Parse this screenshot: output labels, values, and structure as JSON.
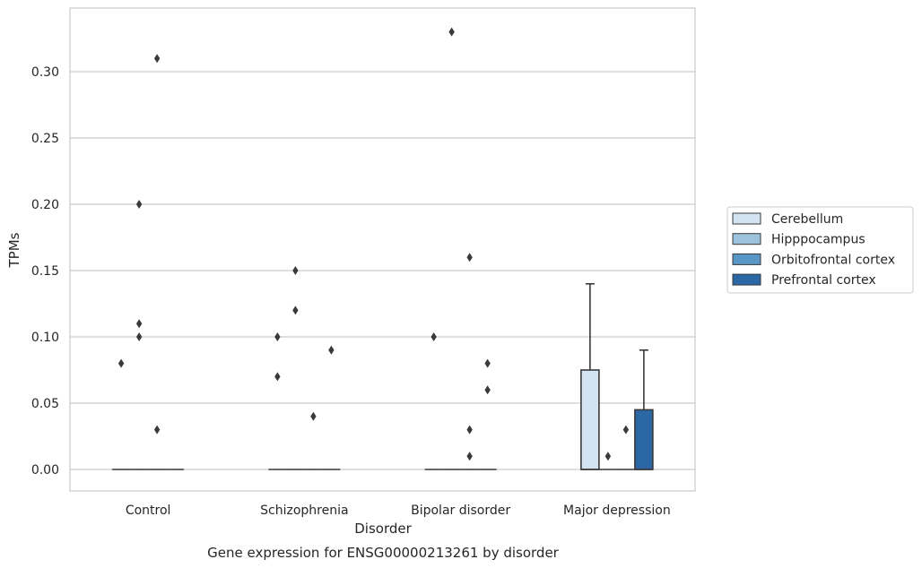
{
  "chart_data": {
    "type": "box",
    "title": "",
    "caption": "Gene expression for ENSG00000213261 by disorder",
    "xlabel": "Disorder",
    "ylabel": "TPMs",
    "ylim": [
      -0.016,
      0.346
    ],
    "yticks": [
      0.0,
      0.05,
      0.1,
      0.15,
      0.2,
      0.25,
      0.3
    ],
    "ytick_labels": [
      "0.00",
      "0.05",
      "0.10",
      "0.15",
      "0.20",
      "0.25",
      "0.30"
    ],
    "grid": "horizontal",
    "legend_position": "right",
    "categories": [
      "Control",
      "Schizophrenia",
      "Bipolar disorder",
      "Major depression"
    ],
    "series": [
      {
        "name": "Cerebellum",
        "color": "#d3e3f2",
        "boxes": [
          {
            "q1": 0,
            "median": 0,
            "q3": 0,
            "whisker_low": 0,
            "whisker_high": 0,
            "outliers": [
              0.08
            ]
          },
          {
            "q1": 0,
            "median": 0,
            "q3": 0,
            "whisker_low": 0,
            "whisker_high": 0,
            "outliers": [
              0.07,
              0.1
            ]
          },
          {
            "q1": 0,
            "median": 0,
            "q3": 0,
            "whisker_low": 0,
            "whisker_high": 0,
            "outliers": [
              0.1
            ]
          },
          {
            "q1": 0,
            "median": 0,
            "q3": 0.075,
            "whisker_low": 0,
            "whisker_high": 0.14,
            "outliers": []
          }
        ]
      },
      {
        "name": "Hipppocampus",
        "color": "#9cc2dc",
        "boxes": [
          {
            "q1": 0,
            "median": 0,
            "q3": 0,
            "whisker_low": 0,
            "whisker_high": 0,
            "outliers": [
              0.1,
              0.11,
              0.2
            ]
          },
          {
            "q1": 0,
            "median": 0,
            "q3": 0,
            "whisker_low": 0,
            "whisker_high": 0,
            "outliers": [
              0.12,
              0.15
            ]
          },
          {
            "q1": 0,
            "median": 0,
            "q3": 0,
            "whisker_low": 0,
            "whisker_high": 0,
            "outliers": [
              0.33
            ]
          },
          {
            "q1": 0,
            "median": 0,
            "q3": 0,
            "whisker_low": 0,
            "whisker_high": 0,
            "outliers": [
              0.01
            ]
          }
        ]
      },
      {
        "name": "Orbitofrontal cortex",
        "color": "#5897c6",
        "boxes": [
          {
            "q1": 0,
            "median": 0,
            "q3": 0,
            "whisker_low": 0,
            "whisker_high": 0,
            "outliers": [
              0.03,
              0.31
            ]
          },
          {
            "q1": 0,
            "median": 0,
            "q3": 0,
            "whisker_low": 0,
            "whisker_high": 0,
            "outliers": [
              0.04
            ]
          },
          {
            "q1": 0,
            "median": 0,
            "q3": 0,
            "whisker_low": 0,
            "whisker_high": 0,
            "outliers": [
              0.01,
              0.03,
              0.16
            ]
          },
          {
            "q1": 0,
            "median": 0,
            "q3": 0,
            "whisker_low": 0,
            "whisker_high": 0,
            "outliers": [
              0.03
            ]
          }
        ]
      },
      {
        "name": "Prefrontal cortex",
        "color": "#2b66a5",
        "boxes": [
          {
            "q1": 0,
            "median": 0,
            "q3": 0,
            "whisker_low": 0,
            "whisker_high": 0,
            "outliers": []
          },
          {
            "q1": 0,
            "median": 0,
            "q3": 0,
            "whisker_low": 0,
            "whisker_high": 0,
            "outliers": [
              0.09
            ]
          },
          {
            "q1": 0,
            "median": 0,
            "q3": 0,
            "whisker_low": 0,
            "whisker_high": 0,
            "outliers": [
              0.06,
              0.08
            ]
          },
          {
            "q1": 0,
            "median": 0,
            "q3": 0.045,
            "whisker_low": 0,
            "whisker_high": 0.09,
            "outliers": []
          }
        ]
      }
    ]
  }
}
